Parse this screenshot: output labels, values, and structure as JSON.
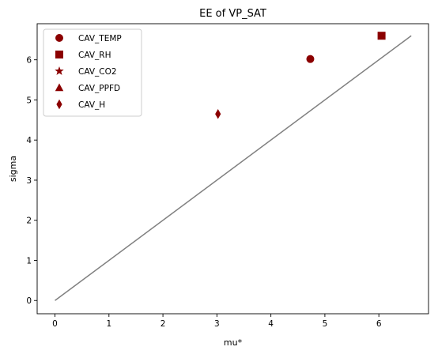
{
  "chart_data": {
    "type": "scatter",
    "title": "EE of VP_SAT",
    "xlabel": "mu*",
    "ylabel": "sigma",
    "xlim": [
      -0.33,
      6.92
    ],
    "ylim": [
      -0.33,
      6.9
    ],
    "xticks": [
      0,
      1,
      2,
      3,
      4,
      5,
      6
    ],
    "yticks": [
      0,
      1,
      2,
      3,
      4,
      5,
      6
    ],
    "grid": false,
    "legend_position": "top-left",
    "marker_color": "#8b0000",
    "reference_line": {
      "x": [
        0,
        6.6
      ],
      "y": [
        0,
        6.6
      ],
      "color": "#808080"
    },
    "series": [
      {
        "name": "CAV_TEMP",
        "marker": "circle",
        "x": [
          4.73
        ],
        "y": [
          6.02
        ]
      },
      {
        "name": "CAV_RH",
        "marker": "square",
        "x": [
          6.05
        ],
        "y": [
          6.6
        ]
      },
      {
        "name": "CAV_CO2",
        "marker": "star",
        "x": [],
        "y": []
      },
      {
        "name": "CAV_PPFD",
        "marker": "triangle",
        "x": [],
        "y": []
      },
      {
        "name": "CAV_H",
        "marker": "diamond",
        "x": [
          3.02
        ],
        "y": [
          4.65
        ]
      }
    ]
  }
}
